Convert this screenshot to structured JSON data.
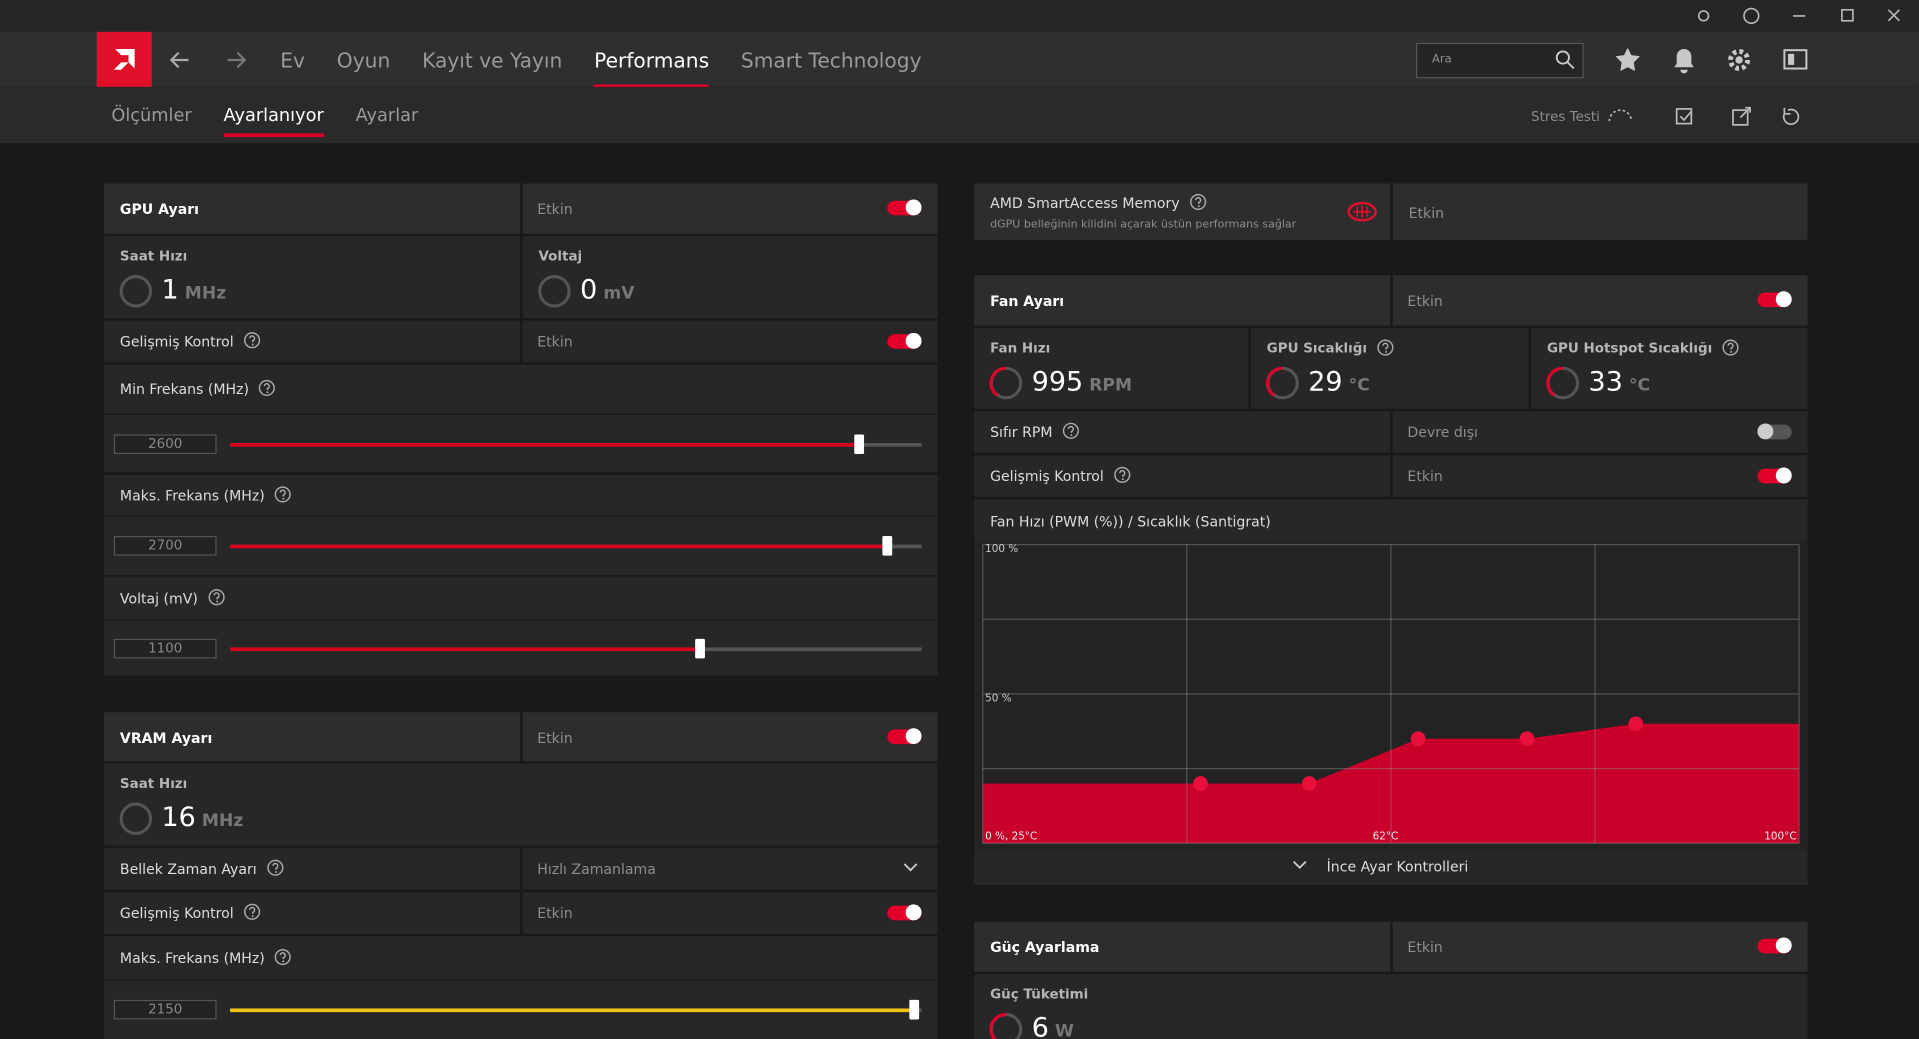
{
  "nav": {
    "tabs": [
      "Ev",
      "Oyun",
      "Kayıt ve Yayın",
      "Performans",
      "Smart Technology"
    ],
    "active": 3,
    "search_placeholder": "Ara"
  },
  "subnav": {
    "tabs": [
      "Ölçümler",
      "Ayarlanıyor",
      "Ayarlar"
    ],
    "active": 1,
    "stress_test": "Stres Testi"
  },
  "gpu_tuning": {
    "title": "GPU Ayarı",
    "status": "Etkin",
    "enabled": true,
    "clock": {
      "label": "Saat Hızı",
      "value": 1,
      "unit": "MHz"
    },
    "voltage": {
      "label": "Voltaj",
      "value": 0,
      "unit": "mV"
    },
    "advanced": {
      "label": "Gelişmiş Kontrol",
      "status": "Etkin",
      "enabled": true
    },
    "sliders": [
      {
        "label": "Min Frekans (MHz)",
        "value": 2600,
        "fill_percent": 91,
        "color": "#d6001c"
      },
      {
        "label": "Maks. Frekans (MHz)",
        "value": 2700,
        "fill_percent": 95,
        "color": "#d6001c"
      },
      {
        "label": "Voltaj (mV)",
        "value": 1100,
        "fill_percent": 68,
        "color": "#d6001c"
      }
    ]
  },
  "vram_tuning": {
    "title": "VRAM Ayarı",
    "status": "Etkin",
    "enabled": true,
    "clock": {
      "label": "Saat Hızı",
      "value": 16,
      "unit": "MHz"
    },
    "timing": {
      "label": "Bellek Zaman Ayarı",
      "value": "Hızlı Zamanlama"
    },
    "advanced": {
      "label": "Gelişmiş Kontrol",
      "status": "Etkin",
      "enabled": true
    },
    "slider": {
      "label": "Maks. Frekans (MHz)",
      "value": 2150,
      "fill_percent": 99,
      "color": "#f0c419"
    }
  },
  "sam": {
    "title": "AMD SmartAccess Memory",
    "description": "dGPU belleğinin kilidini açarak üstün performans sağlar",
    "status": "Etkin"
  },
  "fan_tuning": {
    "title": "Fan Ayarı",
    "status": "Etkin",
    "enabled": true,
    "metrics": [
      {
        "label": "Fan Hızı",
        "value": 995,
        "unit": "RPM"
      },
      {
        "label": "GPU Sıcaklığı",
        "value": 29,
        "unit": "°C"
      },
      {
        "label": "GPU Hotspot Sıcaklığı",
        "value": 33,
        "unit": "°C"
      }
    ],
    "zero_rpm": {
      "label": "Sıfır RPM",
      "status": "Devre dışı",
      "enabled": false
    },
    "advanced": {
      "label": "Gelişmiş Kontrol",
      "status": "Etkin",
      "enabled": true
    },
    "curve": {
      "title": "Fan Hızı (PWM (%)) / Sıcaklık (Santigrat)",
      "color": "#c8002a",
      "xlim": [
        25,
        100
      ],
      "ylim": [
        0,
        100
      ],
      "xgrid": [
        25,
        43.75,
        62.5,
        81.25,
        100
      ],
      "ygrid": [
        0,
        25,
        50,
        75,
        100
      ],
      "y_labels": [
        {
          "value": 100,
          "label": "100 %"
        },
        {
          "value": 50,
          "label": "50 %"
        }
      ],
      "x_labels": [
        {
          "value": 25,
          "label": "0 %, 25°C"
        },
        {
          "value": 62,
          "label": "62°C"
        },
        {
          "value": 100,
          "label": "100°C"
        }
      ],
      "points": [
        {
          "temp": 45,
          "pwm": 20
        },
        {
          "temp": 55,
          "pwm": 20
        },
        {
          "temp": 65,
          "pwm": 35
        },
        {
          "temp": 75,
          "pwm": 35
        },
        {
          "temp": 85,
          "pwm": 40
        }
      ]
    },
    "fine_tune": "İnce Ayar Kontrolleri"
  },
  "power_tuning": {
    "title": "Güç Ayarlama",
    "status": "Etkin",
    "enabled": true,
    "consumption": {
      "label": "Güç Tüketimi",
      "value": 6,
      "unit": "W"
    }
  }
}
